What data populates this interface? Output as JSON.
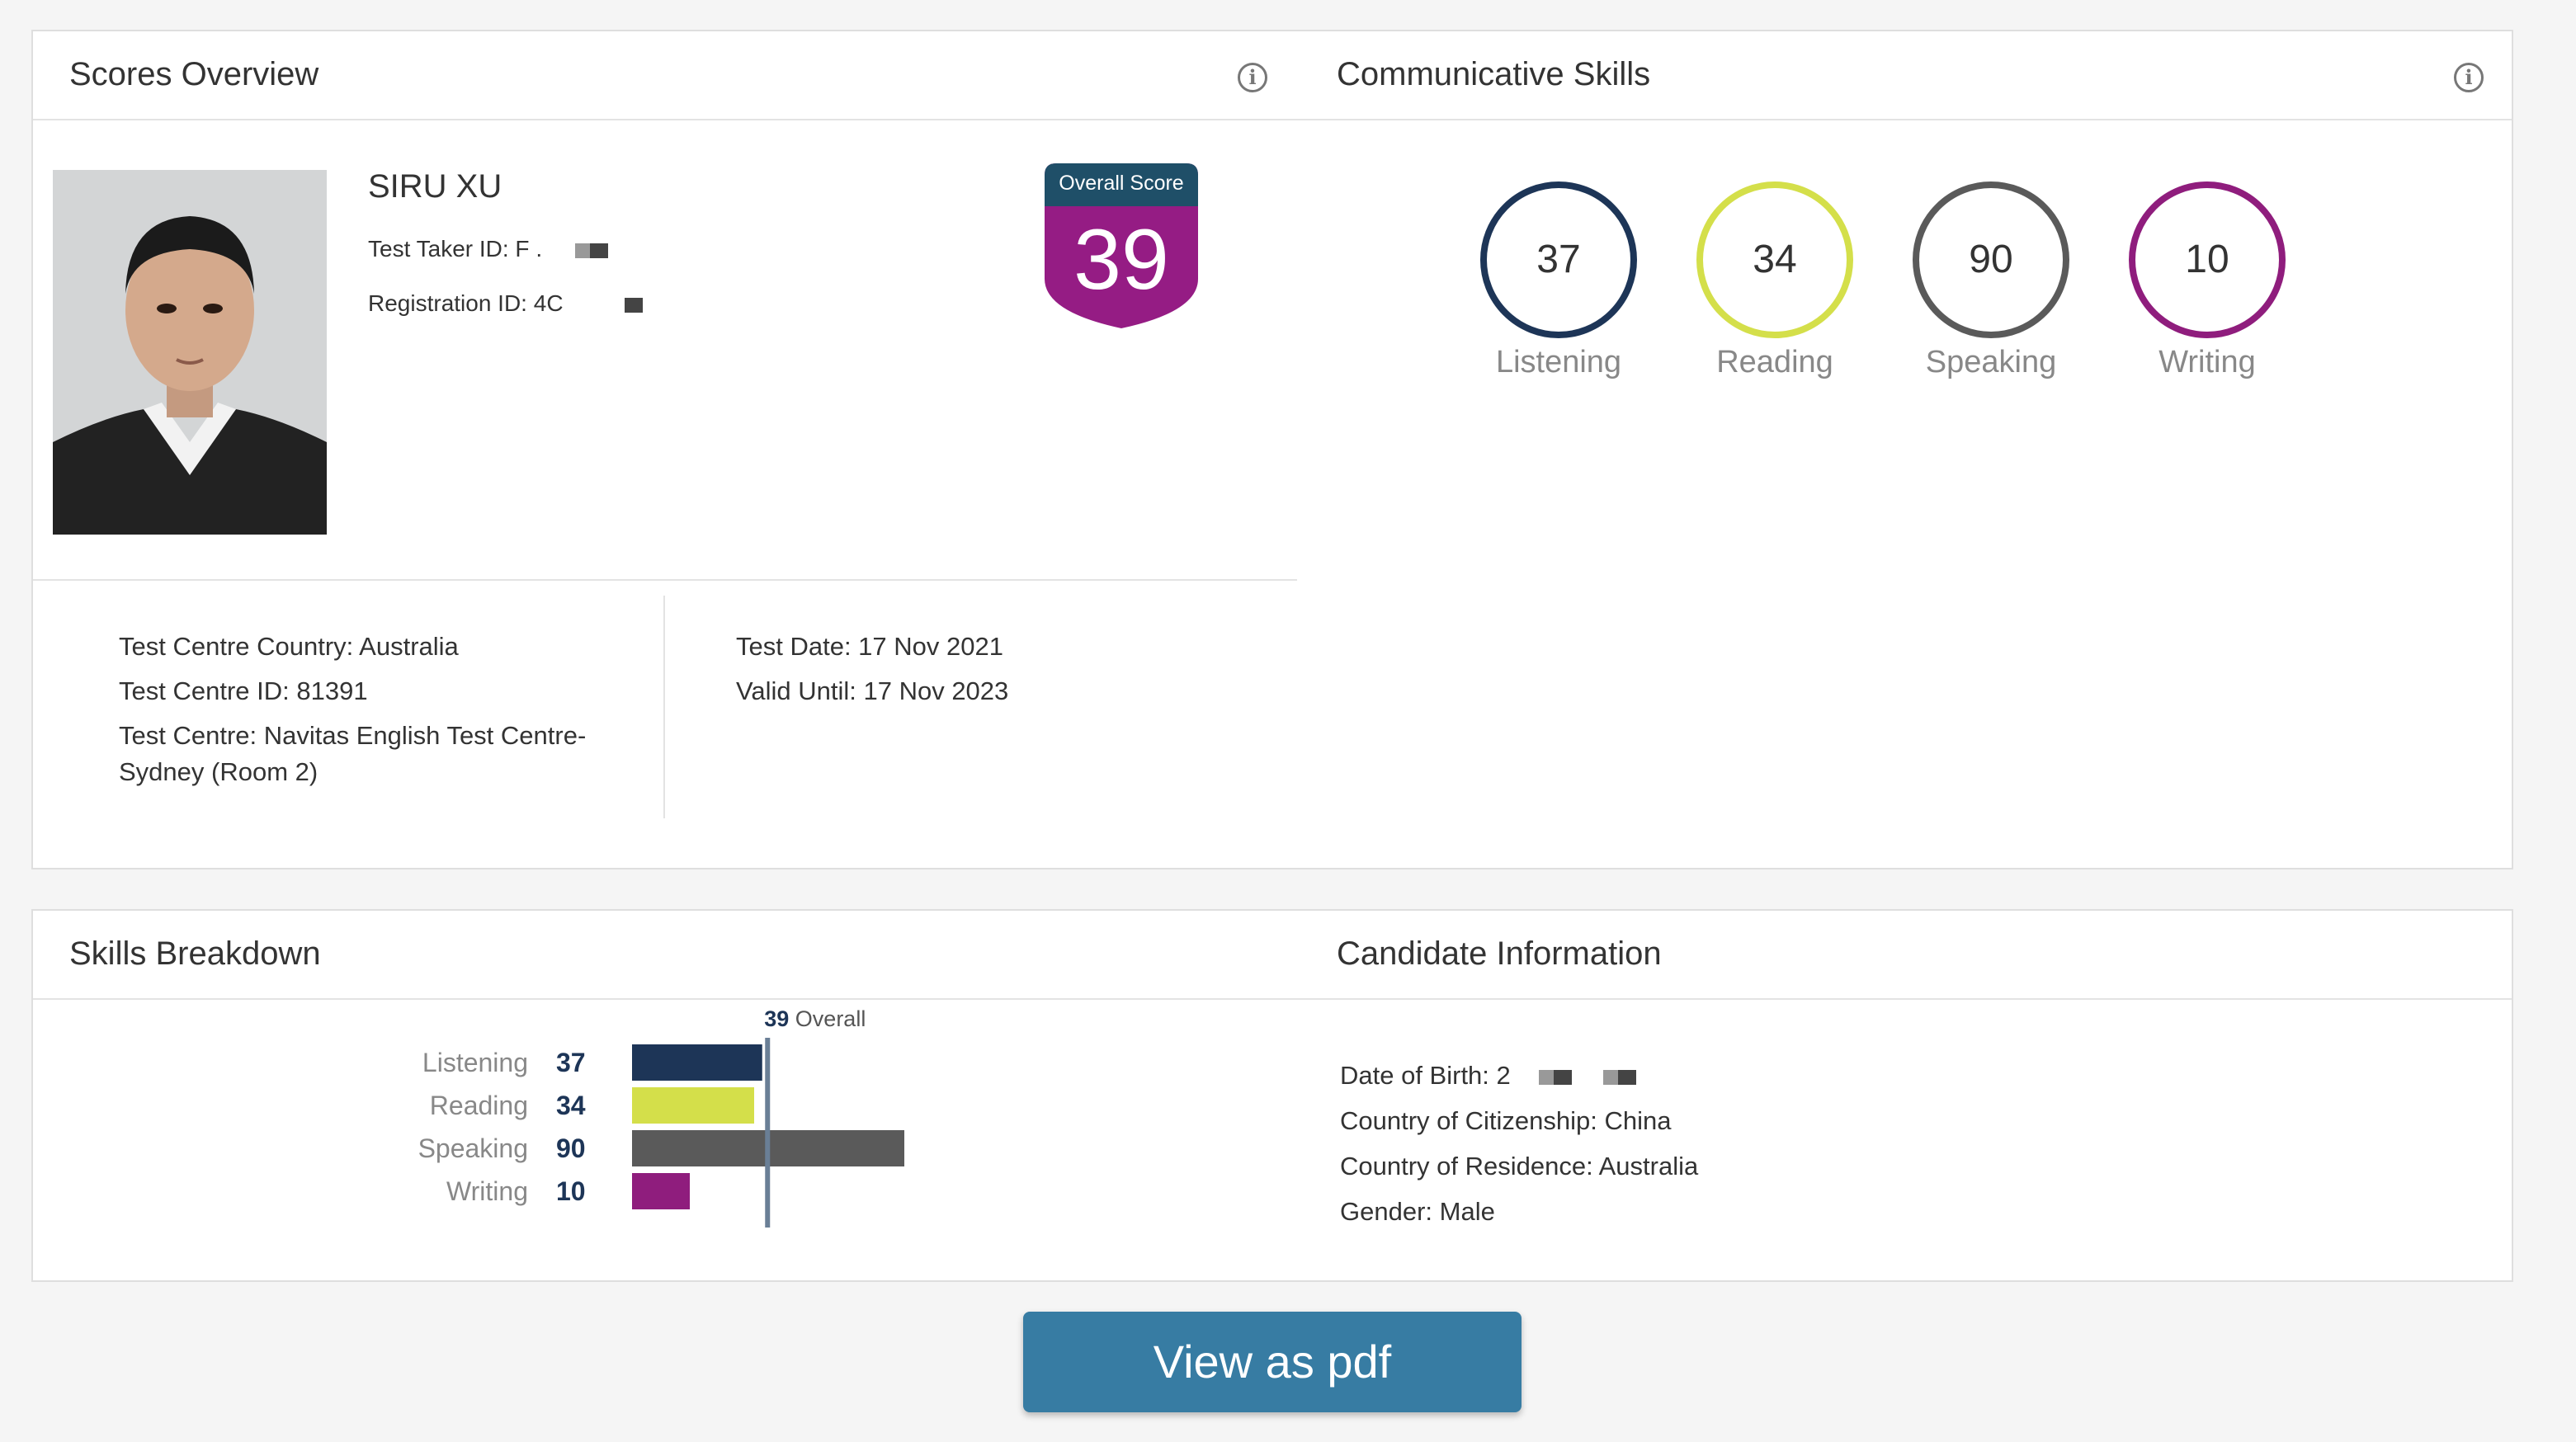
{
  "overview": {
    "title": "Scores Overview",
    "name": "SIRU XU",
    "test_taker_label": "Test Taker ID: F .",
    "registration_label": "Registration ID: 4C",
    "overall_label": "Overall Score",
    "overall_score": "39",
    "centre_country": "Test Centre Country: Australia",
    "centre_id": "Test Centre ID: 81391",
    "centre_name_1": "Test Centre: Navitas English Test Centre-",
    "centre_name_2": "Sydney (Room 2)",
    "test_date": "Test Date: 17 Nov 2021",
    "valid_until": "Valid Until: 17 Nov 2023"
  },
  "communicative": {
    "title": "Communicative Skills",
    "skills": [
      {
        "label": "Listening",
        "score": "37",
        "color": "#1d3557"
      },
      {
        "label": "Reading",
        "score": "34",
        "color": "#d4df4a"
      },
      {
        "label": "Speaking",
        "score": "90",
        "color": "#5a5a5a"
      },
      {
        "label": "Writing",
        "score": "10",
        "color": "#8f1d7d"
      }
    ]
  },
  "breakdown": {
    "title": "Skills Breakdown",
    "overall_value": "39",
    "overall_word": "Overall"
  },
  "chart_data": {
    "type": "bar",
    "categories": [
      "Listening",
      "Reading",
      "Speaking",
      "Writing"
    ],
    "values": [
      37,
      34,
      90,
      10
    ],
    "colors": [
      "#1d3557",
      "#d4df4a",
      "#5a5a5a",
      "#8f1d7d"
    ],
    "reference_line": 39,
    "xlim": [
      10,
      90
    ],
    "orientation": "horizontal"
  },
  "candidate": {
    "title": "Candidate Information",
    "dob": "Date of Birth: 2",
    "citizenship": "Country of Citizenship: China",
    "residence": "Country of Residence: Australia",
    "gender": "Gender: Male"
  },
  "actions": {
    "pdf_label": "View as pdf"
  }
}
